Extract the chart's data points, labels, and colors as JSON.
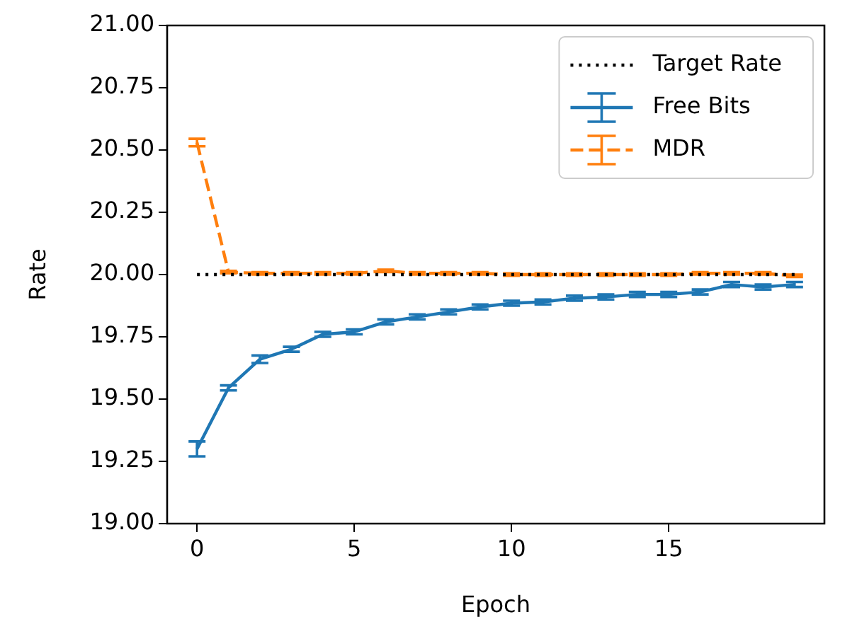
{
  "chart_data": {
    "type": "line",
    "xlabel": "Epoch",
    "ylabel": "Rate",
    "x": [
      0,
      1,
      2,
      3,
      4,
      5,
      6,
      7,
      8,
      9,
      10,
      11,
      12,
      13,
      14,
      15,
      16,
      17,
      18,
      19
    ],
    "xlim": [
      -0.95,
      19.95
    ],
    "xticks": [
      0,
      5,
      10,
      15
    ],
    "ylim": [
      19,
      21
    ],
    "yticks": [
      {
        "value": 19,
        "label": "19.00"
      },
      {
        "value": 19.25,
        "label": "19.25"
      },
      {
        "value": 19.5,
        "label": "19.50"
      },
      {
        "value": 19.75,
        "label": "19.75"
      },
      {
        "value": 20,
        "label": "20.00"
      },
      {
        "value": 20.25,
        "label": "20.25"
      },
      {
        "value": 20.5,
        "label": "20.50"
      },
      {
        "value": 20.75,
        "label": "20.75"
      },
      {
        "value": 21,
        "label": "21.00"
      }
    ],
    "legend": "top right",
    "marker": "none",
    "series": [
      {
        "name": "Target Rate",
        "color": "#000000",
        "line_style": "dotted",
        "x": [
          0,
          19
        ],
        "values": [
          20,
          20
        ]
      },
      {
        "name": "Free Bits",
        "color": "#1f77b4",
        "line_style": "solid",
        "values": [
          19.3,
          19.545,
          19.66,
          19.7,
          19.76,
          19.77,
          19.81,
          19.83,
          19.85,
          19.87,
          19.885,
          19.89,
          19.905,
          19.91,
          19.92,
          19.92,
          19.93,
          19.96,
          19.95,
          19.96
        ],
        "errors": [
          0.03,
          0.01,
          0.015,
          0.01,
          0.01,
          0.01,
          0.01,
          0.01,
          0.01,
          0.01,
          0.01,
          0.01,
          0.01,
          0.01,
          0.01,
          0.01,
          0.01,
          0.01,
          0.01,
          0.01
        ]
      },
      {
        "name": "MDR",
        "color": "#ff7f0e",
        "line_style": "dashed",
        "values": [
          20.53,
          20.01,
          20.005,
          20.005,
          20.005,
          20.005,
          20.015,
          20.005,
          20.005,
          20.005,
          20.0,
          20.0,
          20.0,
          20.0,
          20.0,
          20.0,
          20.005,
          20.005,
          20.005,
          19.995
        ],
        "errors": [
          0.015,
          0.005,
          0.005,
          0.005,
          0.005,
          0.005,
          0.005,
          0.005,
          0.005,
          0.005,
          0.005,
          0.005,
          0.005,
          0.005,
          0.005,
          0.005,
          0.005,
          0.005,
          0.005,
          0.005
        ]
      }
    ]
  }
}
